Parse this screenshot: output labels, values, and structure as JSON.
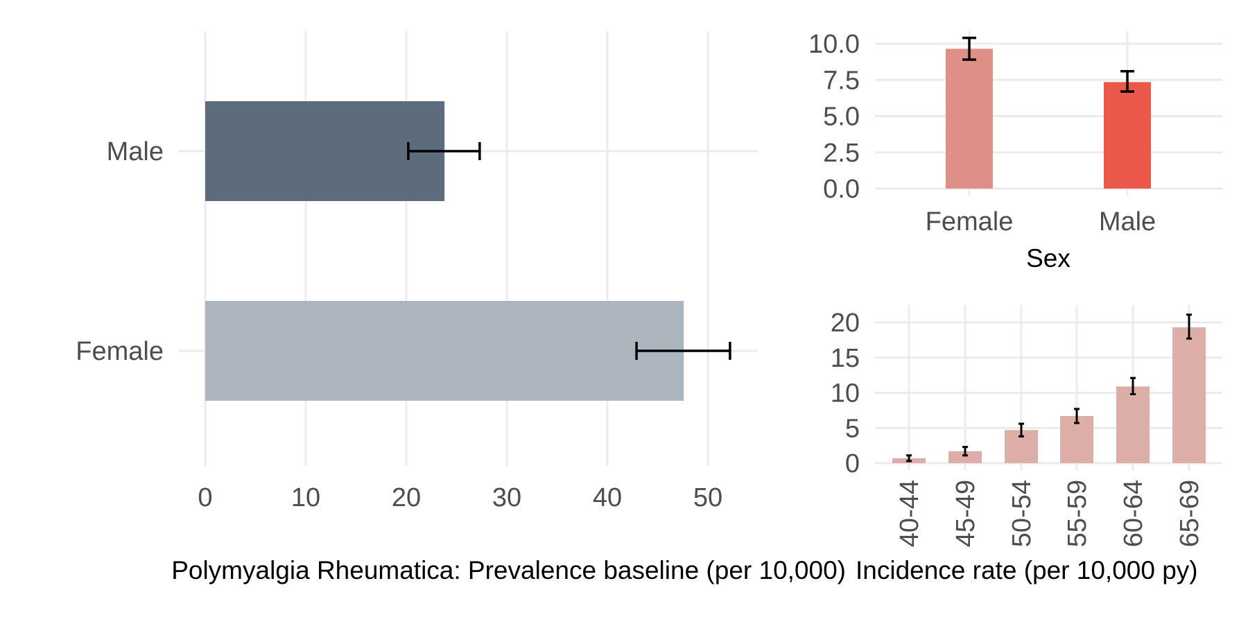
{
  "chart_data": [
    {
      "type": "bar",
      "orientation": "horizontal",
      "categories": [
        "Male",
        "Female"
      ],
      "values": [
        23.8,
        47.6
      ],
      "error_low": [
        20.2,
        42.9
      ],
      "error_high": [
        27.3,
        52.2
      ],
      "colors": [
        "#5c6c7c",
        "#adb5bf"
      ],
      "xlabel": "Polymyalgia Rheumatica: Prevalence baseline (per 10,000)",
      "ylabel": "",
      "xlim": [
        0,
        55
      ],
      "x_ticks": [
        "0",
        "10",
        "20",
        "30",
        "40",
        "50"
      ],
      "grid": true
    },
    {
      "type": "bar",
      "categories": [
        "Female",
        "Male"
      ],
      "values": [
        9.65,
        7.35
      ],
      "error_low": [
        8.9,
        6.7
      ],
      "error_high": [
        10.4,
        8.1
      ],
      "colors": [
        "#de9088",
        "#eb5849"
      ],
      "xlabel": "Sex",
      "ylabel": "",
      "ylim": [
        0,
        10.5
      ],
      "y_ticks": [
        "0.0",
        "2.5",
        "5.0",
        "7.5",
        "10.0"
      ],
      "grid": true
    },
    {
      "type": "bar",
      "categories": [
        "40-44",
        "45-49",
        "50-54",
        "55-59",
        "60-64",
        "65-69"
      ],
      "values": [
        0.7,
        1.7,
        4.7,
        6.7,
        10.9,
        19.3
      ],
      "error_low": [
        0.3,
        1.1,
        3.8,
        5.7,
        9.8,
        17.7
      ],
      "error_high": [
        1.1,
        2.3,
        5.6,
        7.7,
        12.1,
        21.1
      ],
      "colors": [
        "#ddaea8"
      ],
      "xlabel": "Incidence rate (per 10,000 py)",
      "ylabel": "",
      "ylim": [
        0,
        21.8
      ],
      "y_ticks": [
        "0",
        "5",
        "10",
        "15",
        "20"
      ],
      "grid": true
    }
  ]
}
